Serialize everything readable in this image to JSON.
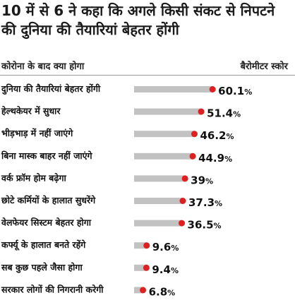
{
  "title": "10 में से 6 ने कहा कि अगले किसी संकट से निपटने की दुनिया की तैयारियां बेहतर होंगी",
  "header": {
    "left": "कोरोना के बाद क्या होगा",
    "right": "बैरोमीटर स्कोर"
  },
  "colors": {
    "bar": "#c2c2c2",
    "marker": "#e02020"
  },
  "chart_data": {
    "type": "bar",
    "orientation": "horizontal",
    "title": "10 में से 6 ने कहा कि अगले किसी संकट से निपटने की दुनिया की तैयारियां बेहतर होंगी",
    "xlabel": "बैरोमीटर स्कोर",
    "ylabel": "कोरोना के बाद क्या होगा",
    "xlim": [
      0,
      62
    ],
    "unit": "%",
    "categories": [
      "दुनिया की तैयारियां बेहतर होंगी",
      "हेल्थकेयर में सुधार",
      "भीड़भाड़ में नहीं जाएंगे",
      "बिना मास्क बाहर नहीं जाएंगे",
      "वर्क फ्रॉम होम बढ़ेगा",
      "छोटे कर्मियों के हालात सुधरेंगे",
      "वेलफेयर सिस्टम बेहतर होगा",
      "कर्फ्यू के हालात बनते रहेंगे",
      "सब कुछ पहले जैसा होगा",
      "सरकार लोगों की निगरानी करेगी"
    ],
    "values": [
      60.1,
      51.4,
      46.2,
      44.9,
      39,
      37.3,
      36.5,
      9.6,
      9.4,
      6.8
    ],
    "value_labels": [
      "60.1",
      "51.4",
      "46.2",
      "44.9",
      "39",
      "37.3",
      "36.5",
      "9.6",
      "9.4",
      "6.8"
    ]
  }
}
